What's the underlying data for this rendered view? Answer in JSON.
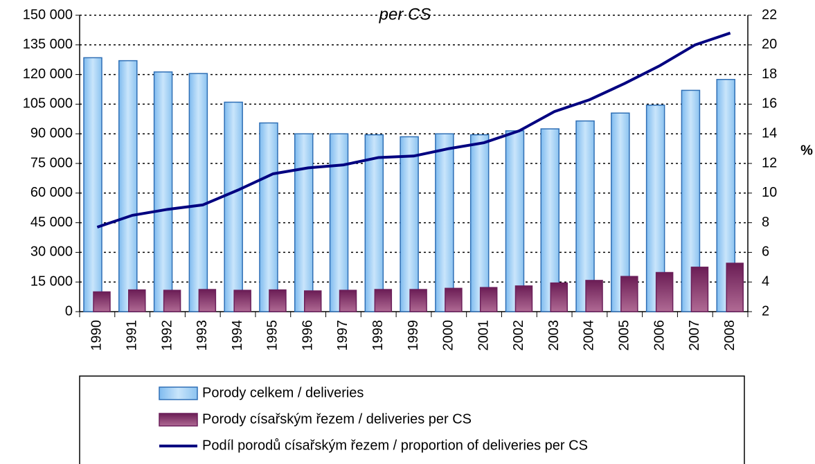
{
  "chart_data": {
    "type": "bar-line",
    "title": "per CS",
    "categories": [
      "1990",
      "1991",
      "1992",
      "1993",
      "1994",
      "1995",
      "1996",
      "1997",
      "1998",
      "1999",
      "2000",
      "2001",
      "2002",
      "2003",
      "2004",
      "2005",
      "2006",
      "2007",
      "2008"
    ],
    "series": [
      {
        "name": "Porody celkem / deliveries",
        "color": "#a9d3f5",
        "values": [
          128500,
          127000,
          121300,
          120500,
          106000,
          95500,
          90000,
          90000,
          89500,
          88500,
          90000,
          89500,
          91500,
          92500,
          96500,
          100500,
          104500,
          112000,
          117500
        ]
      },
      {
        "name": "Porody císařským řezem / deliveries per CS",
        "color": "#8e3b6e",
        "values": [
          10000,
          11000,
          10800,
          11200,
          10800,
          11000,
          10500,
          10800,
          11200,
          11200,
          11800,
          12200,
          13000,
          14500,
          15800,
          17800,
          19800,
          22500,
          24500
        ]
      },
      {
        "name": "Podíl porodů císařským řezem / proportion of deliveries per CS",
        "color": "#000080",
        "axis": "y2",
        "values": [
          7.7,
          8.5,
          8.9,
          9.2,
          10.2,
          11.3,
          11.7,
          11.9,
          12.4,
          12.5,
          13.0,
          13.4,
          14.2,
          15.5,
          16.3,
          17.4,
          18.6,
          20.0,
          20.8
        ]
      }
    ],
    "ylim": [
      0,
      150000
    ],
    "yticks": [
      0,
      {
        "value": 15000,
        "label": "15 000"
      },
      {
        "value": 30000,
        "label": "30 000"
      },
      {
        "value": 45000,
        "label": "45 000"
      },
      {
        "value": 60000,
        "label": "60 000"
      },
      {
        "value": 75000,
        "label": "75 000"
      },
      {
        "value": 90000,
        "label": "90 000"
      },
      {
        "value": 105000,
        "label": "105 000"
      },
      {
        "value": 120000,
        "label": "120 000"
      },
      {
        "value": 135000,
        "label": "135 000"
      },
      {
        "value": 150000,
        "label": "150 000"
      }
    ],
    "y2label": "%",
    "y2lim": [
      2,
      22
    ],
    "y2ticks": [
      2,
      4,
      6,
      8,
      10,
      12,
      14,
      16,
      18,
      20,
      22
    ],
    "grid": true
  }
}
